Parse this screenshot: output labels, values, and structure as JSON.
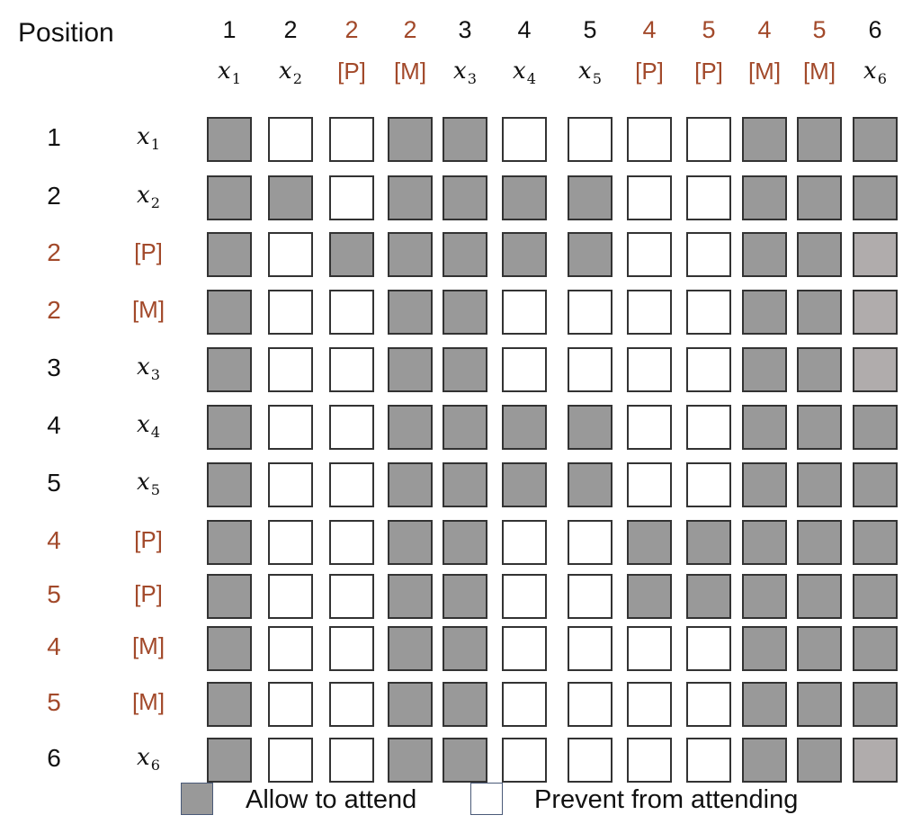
{
  "axis_label": "Position",
  "colors": {
    "allow": "#999999",
    "allow_light": "#b0acac",
    "prevent": "#ffffff",
    "normal_text": "#111111",
    "mask_text": "#a2492a"
  },
  "columns": [
    {
      "pos": "1",
      "var": "x",
      "sub": "1",
      "special": false
    },
    {
      "pos": "2",
      "var": "x",
      "sub": "2",
      "special": false
    },
    {
      "pos": "2",
      "token": "[P]",
      "special": true
    },
    {
      "pos": "2",
      "token": "[M]",
      "special": true
    },
    {
      "pos": "3",
      "var": "x",
      "sub": "3",
      "special": false
    },
    {
      "pos": "4",
      "var": "x",
      "sub": "4",
      "special": false
    },
    {
      "pos": "5",
      "var": "x",
      "sub": "5",
      "special": false
    },
    {
      "pos": "4",
      "token": "[P]",
      "special": true
    },
    {
      "pos": "5",
      "token": "[P]",
      "special": true
    },
    {
      "pos": "4",
      "token": "[M]",
      "special": true
    },
    {
      "pos": "5",
      "token": "[M]",
      "special": true
    },
    {
      "pos": "6",
      "var": "x",
      "sub": "6",
      "special": false
    }
  ],
  "rows": [
    {
      "pos": "1",
      "var": "x",
      "sub": "1",
      "special": false
    },
    {
      "pos": "2",
      "var": "x",
      "sub": "2",
      "special": false
    },
    {
      "pos": "2",
      "token": "[P]",
      "special": true
    },
    {
      "pos": "2",
      "token": "[M]",
      "special": true
    },
    {
      "pos": "3",
      "var": "x",
      "sub": "3",
      "special": false
    },
    {
      "pos": "4",
      "var": "x",
      "sub": "4",
      "special": false
    },
    {
      "pos": "5",
      "var": "x",
      "sub": "5",
      "special": false
    },
    {
      "pos": "4",
      "token": "[P]",
      "special": true
    },
    {
      "pos": "5",
      "token": "[P]",
      "special": true
    },
    {
      "pos": "4",
      "token": "[M]",
      "special": true
    },
    {
      "pos": "5",
      "token": "[M]",
      "special": true
    },
    {
      "pos": "6",
      "var": "x",
      "sub": "6",
      "special": false
    }
  ],
  "matrix": [
    [
      1,
      0,
      0,
      1,
      1,
      0,
      0,
      0,
      0,
      1,
      1,
      1
    ],
    [
      1,
      1,
      0,
      1,
      1,
      1,
      1,
      0,
      0,
      1,
      1,
      1
    ],
    [
      1,
      0,
      1,
      1,
      1,
      1,
      1,
      0,
      0,
      1,
      1,
      2
    ],
    [
      1,
      0,
      0,
      1,
      1,
      0,
      0,
      0,
      0,
      1,
      1,
      2
    ],
    [
      1,
      0,
      0,
      1,
      1,
      0,
      0,
      0,
      0,
      1,
      1,
      2
    ],
    [
      1,
      0,
      0,
      1,
      1,
      1,
      1,
      0,
      0,
      1,
      1,
      1
    ],
    [
      1,
      0,
      0,
      1,
      1,
      1,
      1,
      0,
      0,
      1,
      1,
      1
    ],
    [
      1,
      0,
      0,
      1,
      1,
      0,
      0,
      1,
      1,
      1,
      1,
      1
    ],
    [
      1,
      0,
      0,
      1,
      1,
      0,
      0,
      1,
      1,
      1,
      1,
      1
    ],
    [
      1,
      0,
      0,
      1,
      1,
      0,
      0,
      0,
      0,
      1,
      1,
      1
    ],
    [
      1,
      0,
      0,
      1,
      1,
      0,
      0,
      0,
      0,
      1,
      1,
      1
    ],
    [
      1,
      0,
      0,
      1,
      1,
      0,
      0,
      0,
      0,
      1,
      1,
      2
    ]
  ],
  "legend": {
    "allow_label": "Allow to attend",
    "prevent_label": "Prevent from attending"
  }
}
